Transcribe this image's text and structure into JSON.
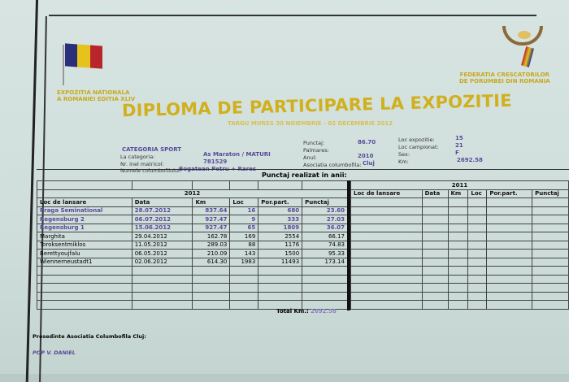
{
  "header": {
    "left_org": [
      "EXPOZITIA NATIONALA",
      "A ROMANIEI EDITIA XLIV"
    ],
    "right_org": [
      "FEDERATIA CRESCATORILOR",
      "DE PORUMBEI DIN ROMANIA"
    ],
    "flag_colors": [
      "#2b2f7a",
      "#e6c21c",
      "#b8262b"
    ]
  },
  "title": "DIPLOMA DE PARTICIPARE LA EXPOZITIE",
  "subtitle": "TARGU MURES 30 NOIEMBRIE - 02 DECEMBRIE 2012",
  "info": {
    "category": "CATEGORIA SPORT",
    "la_categoria_label": "La categoria:",
    "la_categoria": "As Maraton / MATURI",
    "inel_label": "Nr. inel matricol:",
    "inel": "781529",
    "owner_label": "Numele columbofilului:",
    "owner": "Bogatean Petru + Rares",
    "punctaj_label": "Punctaj:",
    "punctaj": "86.70",
    "palmares_label": "Palmares:",
    "anul_label": "Anul:",
    "anul": "2010",
    "asociatia_label": "Asociatia columbofila:",
    "asociatia": "Cluj",
    "loc_expo_label": "Loc expozitie:",
    "loc_expo": "15",
    "loc_camp_label": "Loc campionat:",
    "loc_camp": "21",
    "sex_label": "Sex:",
    "sex": "F",
    "km_label": "Km:",
    "km": "2692.58"
  },
  "table": {
    "caption": "Punctaj realizat in anii:",
    "year_left": "2012",
    "year_right": "2011",
    "columns": [
      "Loc de lansare",
      "Data",
      "Km",
      "Loc",
      "Por.part.",
      "Punctaj"
    ],
    "rows_2012": [
      [
        "Praga Seminational",
        "28.07.2012",
        "837.64",
        "16",
        "680",
        "23.60"
      ],
      [
        "Regensburg 2",
        "06.07.2012",
        "927.47",
        "9",
        "333",
        "27.03"
      ],
      [
        "Regensburg 1",
        "15.06.2012",
        "927.47",
        "65",
        "1809",
        "36.07"
      ],
      [
        "Marghita",
        "29.04.2012",
        "162.78",
        "169",
        "2554",
        "66.17"
      ],
      [
        "Toroksentmiklos",
        "11.05.2012",
        "289.03",
        "88",
        "1176",
        "74.83"
      ],
      [
        "Berettyoujfalu",
        "06.05.2012",
        "210.09",
        "143",
        "1500",
        "95.33"
      ],
      [
        "Wiennerneustadt1",
        "02.06.2012",
        "614.30",
        "1983",
        "11493",
        "173.14"
      ]
    ],
    "highlighted_rows": 3,
    "total_label": "Total Km.:",
    "total": "2692.58"
  },
  "footer": {
    "president_label": "Presedinte Asociatia Columbofila Cluj:",
    "president": "POP V. DANIEL"
  }
}
